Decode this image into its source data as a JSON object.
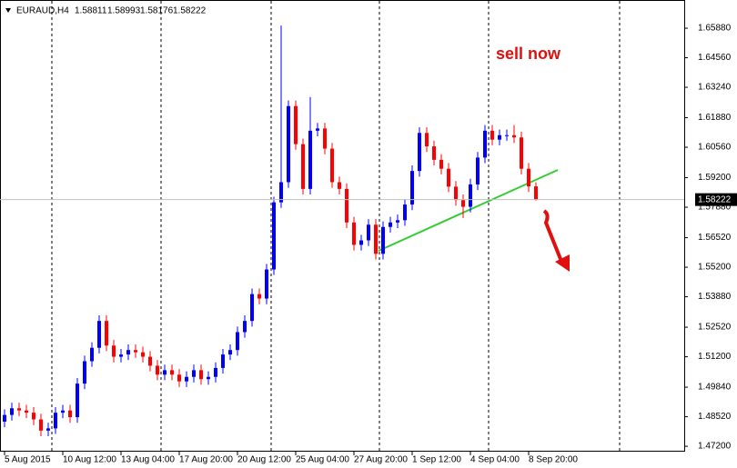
{
  "chart_data": {
    "type": "candlestick",
    "symbol": "EURAUD,H4",
    "annotation": "sell now",
    "up_color": "#0000ff",
    "down_color": "#ff0000",
    "categories": [
      "5 Aug 2015",
      null,
      null,
      null,
      null,
      null,
      null,
      null,
      "10 Aug 12:00",
      null,
      null,
      null,
      null,
      null,
      null,
      null,
      "13 Aug 04:00",
      null,
      null,
      null,
      null,
      null,
      null,
      null,
      "17 Aug 20:00",
      null,
      null,
      null,
      null,
      null,
      null,
      null,
      "20 Aug 12:00",
      null,
      null,
      null,
      null,
      null,
      null,
      null,
      "25 Aug 04:00",
      null,
      null,
      null,
      null,
      null,
      null,
      null,
      "27 Aug 20:00",
      null,
      null,
      null,
      null,
      null,
      null,
      null,
      "1 Sep 12:00",
      null,
      null,
      null,
      null,
      null,
      null,
      null,
      "4 Sep 04:00",
      null,
      null,
      null,
      null,
      null,
      null,
      null,
      "8 Sep 20:00",
      null
    ],
    "open": [
      1.483,
      1.486,
      1.489,
      1.488,
      1.487,
      1.484,
      1.479,
      1.48,
      1.487,
      1.488,
      1.485,
      1.5,
      1.51,
      1.516,
      1.528,
      1.517,
      1.512,
      1.513,
      1.515,
      1.514,
      1.512,
      1.508,
      1.504,
      1.506,
      1.504,
      1.501,
      1.503,
      1.506,
      1.502,
      1.503,
      1.507,
      1.513,
      1.515,
      1.523,
      1.528,
      1.54,
      1.538,
      1.551,
      1.581,
      1.59,
      1.624,
      1.607,
      1.587,
      1.613,
      1.614,
      1.605,
      1.59,
      1.587,
      1.572,
      1.562,
      1.564,
      1.571,
      1.558,
      1.57,
      1.572,
      1.573,
      1.58,
      1.595,
      1.612,
      1.606,
      1.6,
      1.596,
      1.588,
      1.582,
      1.579,
      1.589,
      1.601,
      1.613,
      1.609,
      1.611,
      1.611,
      1.61,
      1.596,
      1.58811
    ],
    "high": [
      1.4885,
      1.4915,
      1.4915,
      1.4905,
      1.4895,
      1.4865,
      1.4825,
      1.4895,
      1.4905,
      1.4905,
      1.5025,
      1.5125,
      1.5185,
      1.5305,
      1.5305,
      1.5195,
      1.5155,
      1.5175,
      1.5175,
      1.5165,
      1.5145,
      1.5105,
      1.5085,
      1.5085,
      1.5065,
      1.5055,
      1.5085,
      1.5085,
      1.5055,
      1.5095,
      1.5155,
      1.5175,
      1.5255,
      1.5305,
      1.5425,
      1.5425,
      1.5535,
      1.5835,
      1.66,
      1.6265,
      1.6265,
      1.6095,
      1.628,
      1.6165,
      1.6165,
      1.6075,
      1.5925,
      1.5895,
      1.5745,
      1.5665,
      1.5735,
      1.5735,
      1.5725,
      1.5745,
      1.5755,
      1.5825,
      1.5975,
      1.6145,
      1.6145,
      1.6085,
      1.6025,
      1.5985,
      1.5905,
      1.5845,
      1.5915,
      1.6035,
      1.6155,
      1.6155,
      1.6135,
      1.6135,
      1.6155,
      1.6125,
      1.5985,
      1.58993
    ],
    "low": [
      1.4805,
      1.4835,
      1.4855,
      1.4845,
      1.4815,
      1.4765,
      1.4765,
      1.4775,
      1.4845,
      1.4825,
      1.4825,
      1.4975,
      1.5075,
      1.5135,
      1.5145,
      1.5095,
      1.5095,
      1.5105,
      1.5115,
      1.5095,
      1.5055,
      1.5015,
      1.5015,
      1.5015,
      1.4985,
      1.4985,
      1.5005,
      1.4995,
      1.4995,
      1.5005,
      1.5045,
      1.5105,
      1.5125,
      1.5205,
      1.5255,
      1.5355,
      1.5355,
      1.5485,
      1.5785,
      1.5875,
      1.6045,
      1.5845,
      1.5845,
      1.6105,
      1.6025,
      1.5875,
      1.5845,
      1.5695,
      1.5595,
      1.5595,
      1.5615,
      1.5555,
      1.5555,
      1.5675,
      1.5695,
      1.5705,
      1.5775,
      1.5925,
      1.6035,
      1.5975,
      1.5935,
      1.5855,
      1.5795,
      1.574,
      1.5765,
      1.5865,
      1.5985,
      1.6065,
      1.6065,
      1.6085,
      1.6075,
      1.5935,
      1.5856,
      1.58176
    ],
    "close": [
      1.486,
      1.489,
      1.488,
      1.487,
      1.484,
      1.479,
      1.48,
      1.487,
      1.488,
      1.485,
      1.5,
      1.51,
      1.516,
      1.528,
      1.517,
      1.512,
      1.513,
      1.515,
      1.514,
      1.512,
      1.508,
      1.504,
      1.506,
      1.504,
      1.501,
      1.503,
      1.506,
      1.502,
      1.503,
      1.507,
      1.513,
      1.515,
      1.523,
      1.528,
      1.54,
      1.538,
      1.551,
      1.581,
      1.59,
      1.624,
      1.607,
      1.587,
      1.613,
      1.614,
      1.605,
      1.59,
      1.587,
      1.572,
      1.562,
      1.564,
      1.571,
      1.558,
      1.57,
      1.572,
      1.573,
      1.58,
      1.595,
      1.612,
      1.606,
      1.6,
      1.596,
      1.588,
      1.582,
      1.579,
      1.589,
      1.601,
      1.613,
      1.609,
      1.611,
      1.611,
      1.61,
      1.596,
      1.5881,
      1.58222
    ],
    "ylim": [
      1.4696,
      1.6714
    ],
    "yticks": [
      {
        "value": 1.6588,
        "label": "1.65880"
      },
      {
        "value": 1.6456,
        "label": "1.64560"
      },
      {
        "value": 1.6324,
        "label": "1.63240"
      },
      {
        "value": 1.6188,
        "label": "1.61880"
      },
      {
        "value": 1.6056,
        "label": "1.60560"
      },
      {
        "value": 1.592,
        "label": "1.59200"
      },
      {
        "value": 1.5788,
        "label": "1.57880"
      },
      {
        "value": 1.5652,
        "label": "1.56520"
      },
      {
        "value": 1.552,
        "label": "1.55200"
      },
      {
        "value": 1.5388,
        "label": "1.53880"
      },
      {
        "value": 1.5252,
        "label": "1.52520"
      },
      {
        "value": 1.512,
        "label": "1.51200"
      },
      {
        "value": 1.4984,
        "label": "1.49840"
      },
      {
        "value": 1.4852,
        "label": "1.48520"
      },
      {
        "value": 1.472,
        "label": "1.47200"
      }
    ]
  }
}
